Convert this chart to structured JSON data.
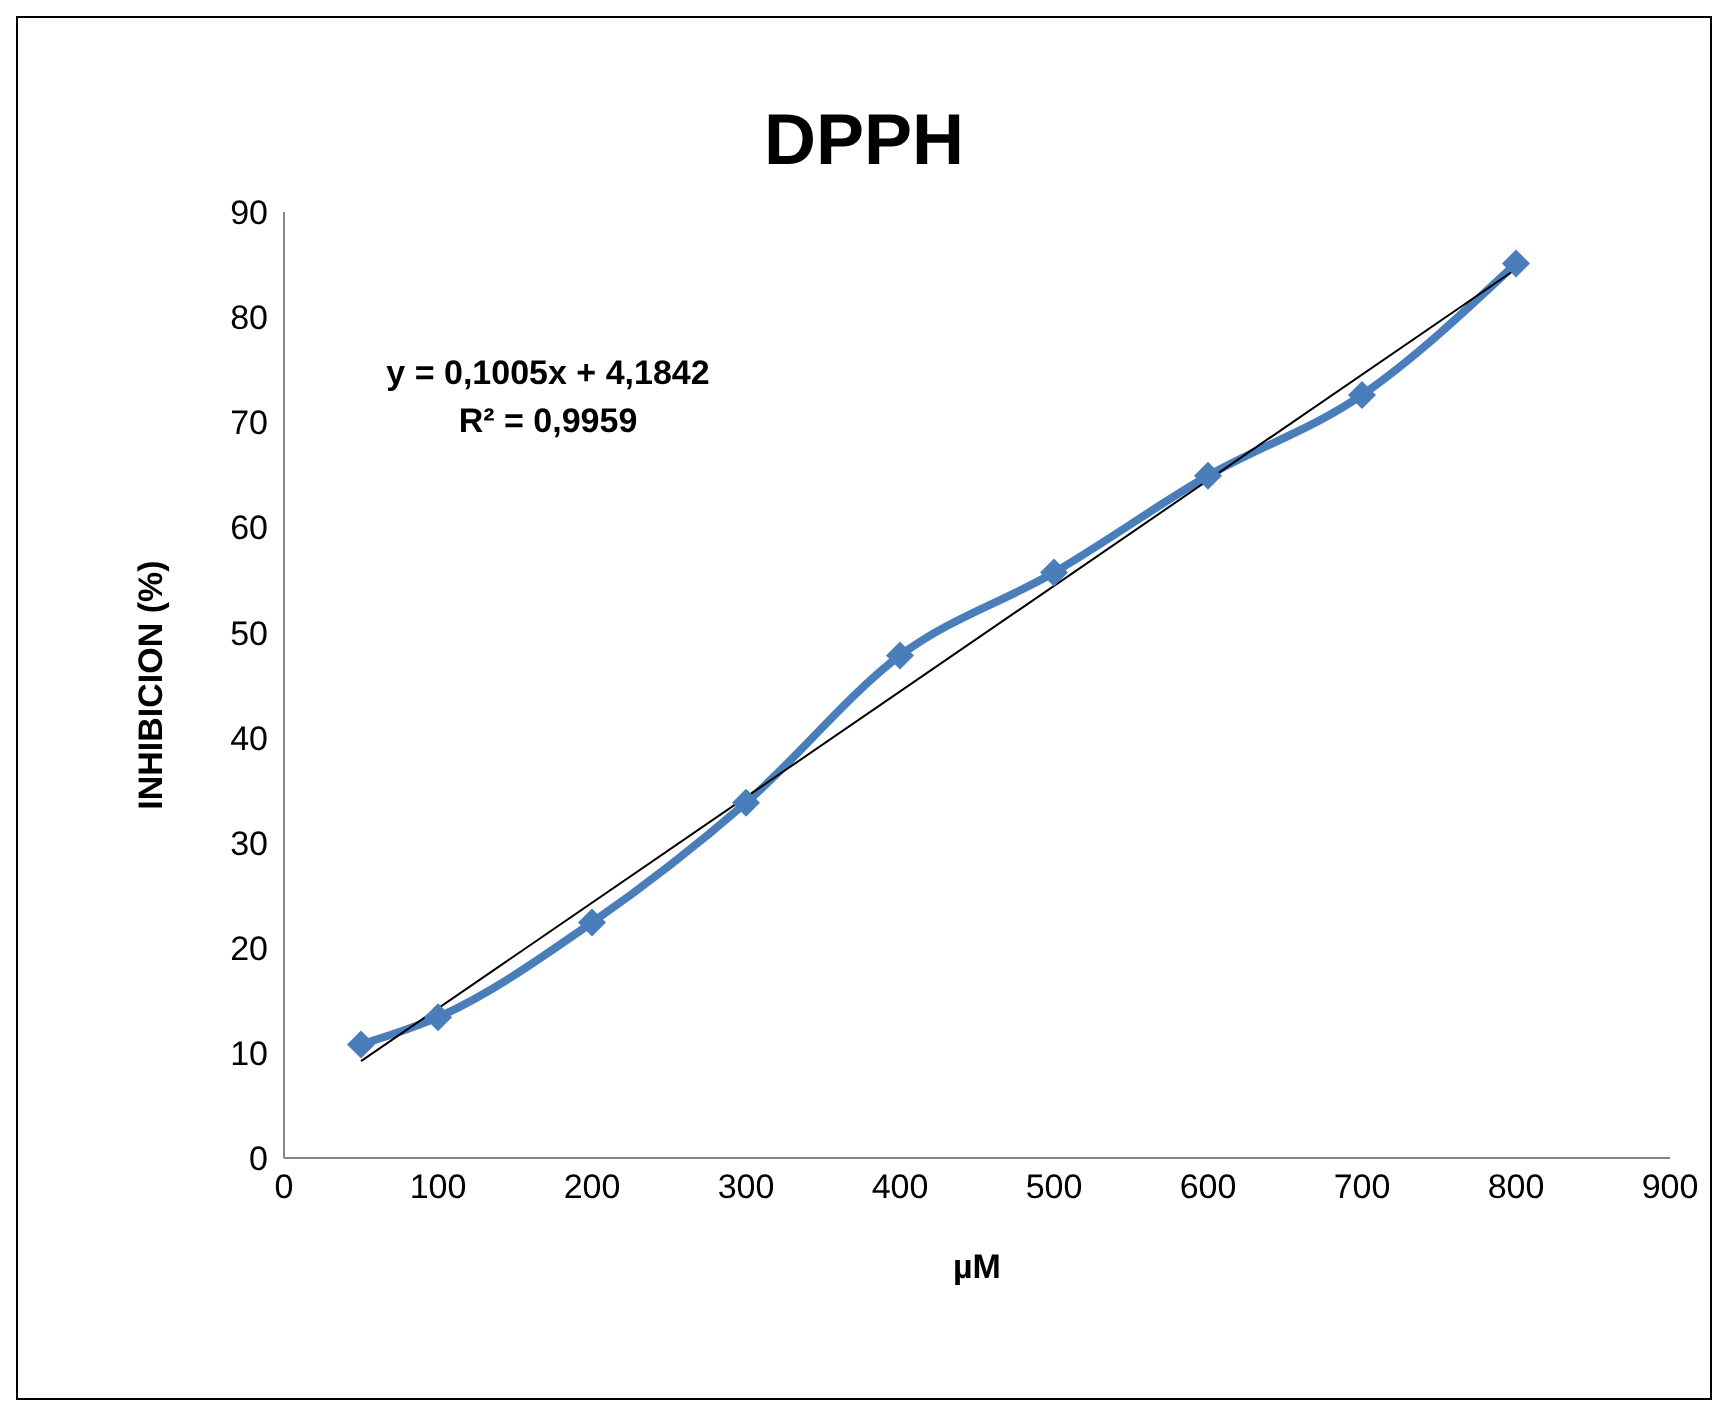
{
  "chart_data": {
    "type": "line",
    "title": "DPPH",
    "xlabel": "µM",
    "ylabel": "INHIBICION (%)",
    "annotations": [
      "y = 0,1005x + 4,1842",
      "R² = 0,9959"
    ],
    "series": [
      {
        "color": "#4a7ebb",
        "x": [
          50,
          100,
          200,
          300,
          400,
          500,
          600,
          700,
          800
        ],
        "values": [
          10.8,
          13.4,
          22.4,
          33.8,
          47.8,
          55.7,
          64.9,
          72.6,
          85.1
        ]
      },
      {
        "type": "line",
        "color": "#000000",
        "marker": "none",
        "x": [
          50,
          800
        ],
        "values": [
          9.21,
          84.58
        ]
      }
    ],
    "xlim": [
      0,
      900
    ],
    "xticks": [
      0,
      100,
      200,
      300,
      400,
      500,
      600,
      700,
      800,
      900
    ],
    "ylim": [
      0,
      90
    ],
    "yticks": [
      0,
      10,
      20,
      30,
      40,
      50,
      60,
      70,
      80,
      90
    ],
    "grid": false,
    "legend": false,
    "marker": "diamond",
    "line_style": "solid"
  }
}
